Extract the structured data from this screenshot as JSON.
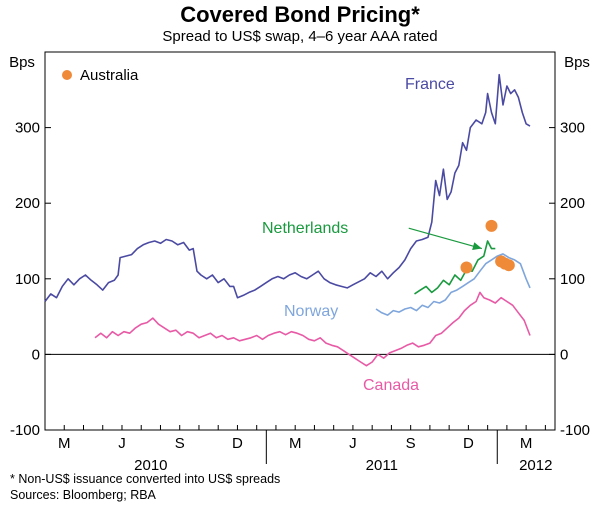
{
  "chart_data": {
    "type": "line",
    "title": "Covered Bond Pricing*",
    "subtitle": "Spread to US$ swap, 4–6 year AAA rated",
    "ylabel_left": "Bps",
    "ylabel_right": "Bps",
    "ylim": [
      -100,
      400
    ],
    "yticks": [
      {
        "value": -100,
        "label": "-100"
      },
      {
        "value": 0,
        "label": "0"
      },
      {
        "value": 100,
        "label": "100"
      },
      {
        "value": 200,
        "label": "200"
      },
      {
        "value": 300,
        "label": "300"
      }
    ],
    "xlim": [
      0,
      26.5
    ],
    "xticks": [
      {
        "value": 1,
        "label": "M"
      },
      {
        "value": 4,
        "label": "J"
      },
      {
        "value": 7,
        "label": "S"
      },
      {
        "value": 10,
        "label": "D"
      },
      {
        "value": 13,
        "label": "M"
      },
      {
        "value": 16,
        "label": "J"
      },
      {
        "value": 19,
        "label": "S"
      },
      {
        "value": 22,
        "label": "D"
      },
      {
        "value": 25,
        "label": "M"
      }
    ],
    "month_boundaries": [
      0,
      1,
      2,
      3,
      4,
      5,
      6,
      7,
      8,
      9,
      10,
      11,
      12,
      13,
      14,
      15,
      16,
      17,
      18,
      19,
      20,
      21,
      22,
      23,
      24,
      25,
      26
    ],
    "year_boundaries": [
      11.5,
      23.5
    ],
    "years": [
      {
        "label": "2010",
        "center": 5.5
      },
      {
        "label": "2011",
        "center": 17.5
      },
      {
        "label": "2012",
        "center": 25.5
      }
    ],
    "series": [
      {
        "name": "France",
        "color": "#4b4aa3",
        "points": [
          [
            0,
            70
          ],
          [
            0.3,
            80
          ],
          [
            0.6,
            75
          ],
          [
            0.9,
            90
          ],
          [
            1.2,
            100
          ],
          [
            1.5,
            92
          ],
          [
            1.8,
            100
          ],
          [
            2.1,
            105
          ],
          [
            2.4,
            98
          ],
          [
            2.7,
            92
          ],
          [
            3.0,
            85
          ],
          [
            3.3,
            95
          ],
          [
            3.6,
            98
          ],
          [
            3.8,
            105
          ],
          [
            3.9,
            128
          ],
          [
            4.2,
            130
          ],
          [
            4.5,
            132
          ],
          [
            4.8,
            140
          ],
          [
            5.1,
            145
          ],
          [
            5.4,
            148
          ],
          [
            5.7,
            150
          ],
          [
            6.0,
            147
          ],
          [
            6.3,
            152
          ],
          [
            6.6,
            150
          ],
          [
            6.9,
            145
          ],
          [
            7.2,
            148
          ],
          [
            7.5,
            138
          ],
          [
            7.7,
            140
          ],
          [
            7.9,
            110
          ],
          [
            8.1,
            105
          ],
          [
            8.4,
            100
          ],
          [
            8.7,
            105
          ],
          [
            9.0,
            95
          ],
          [
            9.3,
            100
          ],
          [
            9.6,
            90
          ],
          [
            9.8,
            90
          ],
          [
            10.0,
            75
          ],
          [
            10.3,
            78
          ],
          [
            10.6,
            82
          ],
          [
            10.9,
            85
          ],
          [
            11.2,
            90
          ],
          [
            11.5,
            95
          ],
          [
            11.8,
            100
          ],
          [
            12.1,
            103
          ],
          [
            12.4,
            100
          ],
          [
            12.7,
            105
          ],
          [
            13.0,
            108
          ],
          [
            13.3,
            103
          ],
          [
            13.6,
            100
          ],
          [
            13.9,
            105
          ],
          [
            14.2,
            110
          ],
          [
            14.5,
            100
          ],
          [
            14.8,
            95
          ],
          [
            15.1,
            92
          ],
          [
            15.4,
            90
          ],
          [
            15.7,
            88
          ],
          [
            16.0,
            92
          ],
          [
            16.3,
            96
          ],
          [
            16.6,
            100
          ],
          [
            16.9,
            108
          ],
          [
            17.2,
            103
          ],
          [
            17.5,
            110
          ],
          [
            17.8,
            100
          ],
          [
            18.1,
            108
          ],
          [
            18.4,
            115
          ],
          [
            18.7,
            125
          ],
          [
            19.0,
            140
          ],
          [
            19.3,
            150
          ],
          [
            19.6,
            152
          ],
          [
            19.9,
            155
          ],
          [
            20.1,
            175
          ],
          [
            20.3,
            230
          ],
          [
            20.5,
            210
          ],
          [
            20.7,
            245
          ],
          [
            20.9,
            205
          ],
          [
            21.1,
            215
          ],
          [
            21.3,
            240
          ],
          [
            21.5,
            250
          ],
          [
            21.7,
            280
          ],
          [
            21.9,
            270
          ],
          [
            22.1,
            300
          ],
          [
            22.4,
            310
          ],
          [
            22.7,
            305
          ],
          [
            22.9,
            320
          ],
          [
            23.0,
            345
          ],
          [
            23.2,
            320
          ],
          [
            23.4,
            305
          ],
          [
            23.6,
            370
          ],
          [
            23.8,
            330
          ],
          [
            24.0,
            355
          ],
          [
            24.2,
            345
          ],
          [
            24.4,
            350
          ],
          [
            24.6,
            340
          ],
          [
            24.8,
            320
          ],
          [
            25.0,
            305
          ],
          [
            25.2,
            302
          ]
        ]
      },
      {
        "name": "Netherlands",
        "color": "#1a9a3f",
        "points": [
          [
            19.2,
            80
          ],
          [
            19.5,
            85
          ],
          [
            19.8,
            90
          ],
          [
            20.1,
            82
          ],
          [
            20.4,
            88
          ],
          [
            20.7,
            98
          ],
          [
            21.0,
            92
          ],
          [
            21.3,
            105
          ],
          [
            21.6,
            98
          ],
          [
            21.9,
            112
          ],
          [
            22.2,
            110
          ],
          [
            22.5,
            125
          ],
          [
            22.8,
            130
          ],
          [
            23.0,
            150
          ],
          [
            23.2,
            140
          ],
          [
            23.4,
            140
          ]
        ]
      },
      {
        "name": "Norway",
        "color": "#7fa6dc",
        "points": [
          [
            17.2,
            60
          ],
          [
            17.5,
            55
          ],
          [
            17.8,
            52
          ],
          [
            18.1,
            58
          ],
          [
            18.4,
            56
          ],
          [
            18.7,
            60
          ],
          [
            19.0,
            62
          ],
          [
            19.3,
            58
          ],
          [
            19.6,
            65
          ],
          [
            19.9,
            62
          ],
          [
            20.2,
            70
          ],
          [
            20.5,
            68
          ],
          [
            20.8,
            72
          ],
          [
            21.1,
            82
          ],
          [
            21.4,
            85
          ],
          [
            21.7,
            90
          ],
          [
            22.0,
            95
          ],
          [
            22.3,
            100
          ],
          [
            22.6,
            110
          ],
          [
            22.9,
            120
          ],
          [
            23.2,
            125
          ],
          [
            23.5,
            130
          ],
          [
            23.8,
            133
          ],
          [
            24.1,
            128
          ],
          [
            24.4,
            125
          ],
          [
            24.7,
            120
          ],
          [
            25.0,
            100
          ],
          [
            25.2,
            88
          ]
        ]
      },
      {
        "name": "Canada",
        "color": "#e85aa6",
        "points": [
          [
            2.6,
            22
          ],
          [
            2.9,
            28
          ],
          [
            3.2,
            22
          ],
          [
            3.5,
            30
          ],
          [
            3.8,
            25
          ],
          [
            4.1,
            30
          ],
          [
            4.4,
            28
          ],
          [
            4.7,
            35
          ],
          [
            5.0,
            40
          ],
          [
            5.3,
            42
          ],
          [
            5.6,
            48
          ],
          [
            5.9,
            40
          ],
          [
            6.2,
            35
          ],
          [
            6.5,
            30
          ],
          [
            6.8,
            32
          ],
          [
            7.1,
            25
          ],
          [
            7.4,
            30
          ],
          [
            7.7,
            28
          ],
          [
            8.0,
            22
          ],
          [
            8.3,
            25
          ],
          [
            8.6,
            28
          ],
          [
            8.9,
            22
          ],
          [
            9.2,
            25
          ],
          [
            9.5,
            20
          ],
          [
            9.8,
            22
          ],
          [
            10.1,
            18
          ],
          [
            10.4,
            20
          ],
          [
            10.7,
            22
          ],
          [
            11.0,
            25
          ],
          [
            11.3,
            20
          ],
          [
            11.6,
            25
          ],
          [
            11.9,
            28
          ],
          [
            12.2,
            30
          ],
          [
            12.5,
            26
          ],
          [
            12.8,
            30
          ],
          [
            13.1,
            28
          ],
          [
            13.4,
            25
          ],
          [
            13.7,
            20
          ],
          [
            14.0,
            18
          ],
          [
            14.3,
            22
          ],
          [
            14.6,
            15
          ],
          [
            14.9,
            12
          ],
          [
            15.2,
            10
          ],
          [
            15.5,
            5
          ],
          [
            15.8,
            0
          ],
          [
            16.1,
            -5
          ],
          [
            16.4,
            -10
          ],
          [
            16.7,
            -15
          ],
          [
            17.0,
            -10
          ],
          [
            17.3,
            0
          ],
          [
            17.6,
            -5
          ],
          [
            17.9,
            2
          ],
          [
            18.2,
            5
          ],
          [
            18.5,
            8
          ],
          [
            18.8,
            12
          ],
          [
            19.1,
            15
          ],
          [
            19.4,
            10
          ],
          [
            19.7,
            12
          ],
          [
            20.0,
            15
          ],
          [
            20.3,
            25
          ],
          [
            20.6,
            28
          ],
          [
            20.9,
            35
          ],
          [
            21.2,
            42
          ],
          [
            21.5,
            48
          ],
          [
            21.8,
            58
          ],
          [
            22.1,
            65
          ],
          [
            22.4,
            70
          ],
          [
            22.6,
            82
          ],
          [
            22.8,
            75
          ],
          [
            23.1,
            72
          ],
          [
            23.4,
            68
          ],
          [
            23.7,
            75
          ],
          [
            24.0,
            70
          ],
          [
            24.3,
            65
          ],
          [
            24.6,
            55
          ],
          [
            24.9,
            45
          ],
          [
            25.2,
            25
          ]
        ]
      }
    ],
    "australia_points": [
      [
        21.9,
        115
      ],
      [
        23.2,
        170
      ],
      [
        23.7,
        123
      ],
      [
        23.9,
        120
      ],
      [
        24.1,
        118
      ]
    ],
    "colors": {
      "australia": "#ef8a38",
      "axis": "#000000",
      "grid": "#000000"
    },
    "labels": {
      "australia_legend": "Australia",
      "france": "France",
      "netherlands": "Netherlands",
      "norway": "Norway",
      "canada": "Canada"
    },
    "annotation_arrow": {
      "from": [
        18.9,
        167
      ],
      "to": [
        22.7,
        140
      ]
    }
  },
  "footnotes": {
    "note": "*     Non-US$ issuance converted into US$ spreads",
    "sources": "Sources: Bloomberg; RBA"
  }
}
